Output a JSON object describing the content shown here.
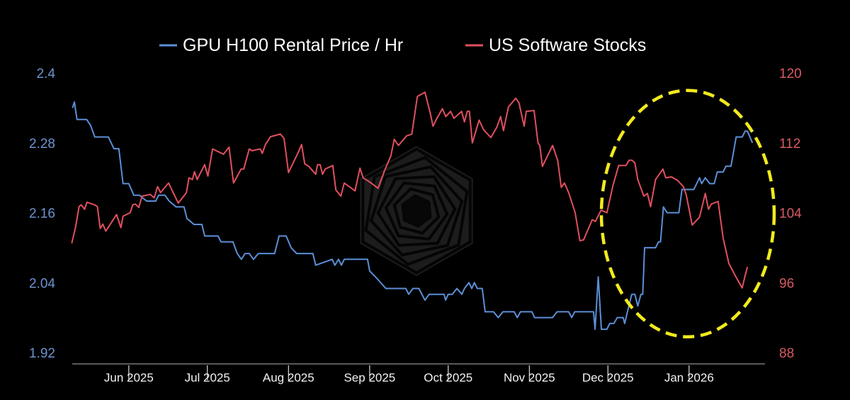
{
  "chart_data": {
    "type": "line",
    "title": "",
    "x_unit": "days since 2025-06-01",
    "legend": {
      "placement": "top-center",
      "entries": [
        "GPU H100 Rental Price / Hr",
        "US Software Stocks"
      ]
    },
    "x_ticks": [
      {
        "label": "Jun 2025",
        "x": 0
      },
      {
        "label": "Jul 2025",
        "x": 30
      },
      {
        "label": "Aug 2025",
        "x": 61
      },
      {
        "label": "Sep 2025",
        "x": 92
      },
      {
        "label": "Oct 2025",
        "x": 122
      },
      {
        "label": "Nov 2025",
        "x": 153
      },
      {
        "label": "Dec 2025",
        "x": 183
      },
      {
        "label": "Jan 2026",
        "x": 214
      }
    ],
    "xlim": [
      -21.6,
      243
    ],
    "y_left": {
      "ylim": [
        1.92,
        2.4
      ],
      "ticks": [
        "2.4",
        "2.28",
        "2.16",
        "2.04",
        "1.92"
      ],
      "tick_values": [
        2.4,
        2.28,
        2.16,
        2.04,
        1.92
      ]
    },
    "y_right": {
      "ylim": [
        88,
        120
      ],
      "ticks": [
        "120",
        "112",
        "104",
        "96",
        "88"
      ],
      "tick_values": [
        120,
        112,
        104,
        96,
        88
      ]
    },
    "grid": false,
    "series": [
      {
        "name": "GPU H100 Rental Price / Hr",
        "axis": "left",
        "color": "#5b8fd6",
        "points": [
          [
            -21.5,
            2.34
          ],
          [
            -20.8,
            2.35
          ],
          [
            -19.8,
            2.32
          ],
          [
            -16.1,
            2.32
          ],
          [
            -14.6,
            2.31
          ],
          [
            -13,
            2.29
          ],
          [
            -7.8,
            2.29
          ],
          [
            -5.7,
            2.27
          ],
          [
            -3.8,
            2.27
          ],
          [
            -2.2,
            2.21
          ],
          [
            0,
            2.21
          ],
          [
            1.9,
            2.19
          ],
          [
            4.1,
            2.19
          ],
          [
            6.8,
            2.18
          ],
          [
            10.3,
            2.18
          ],
          [
            11.4,
            2.19
          ],
          [
            13.8,
            2.19
          ],
          [
            15.4,
            2.18
          ],
          [
            18.1,
            2.17
          ],
          [
            21.1,
            2.17
          ],
          [
            22.2,
            2.15
          ],
          [
            24.9,
            2.14
          ],
          [
            27.9,
            2.14
          ],
          [
            29,
            2.12
          ],
          [
            34.1,
            2.12
          ],
          [
            35.2,
            2.11
          ],
          [
            39.8,
            2.11
          ],
          [
            41.4,
            2.09
          ],
          [
            43,
            2.08
          ],
          [
            44.4,
            2.09
          ],
          [
            46,
            2.09
          ],
          [
            47.6,
            2.08
          ],
          [
            49.5,
            2.09
          ],
          [
            55.7,
            2.09
          ],
          [
            57.4,
            2.12
          ],
          [
            60.1,
            2.12
          ],
          [
            62,
            2.1
          ],
          [
            64.1,
            2.09
          ],
          [
            70.3,
            2.09
          ],
          [
            71.4,
            2.07
          ],
          [
            77.7,
            2.08
          ],
          [
            78.7,
            2.07
          ],
          [
            80.1,
            2.08
          ],
          [
            81.2,
            2.07
          ],
          [
            82.3,
            2.08
          ],
          [
            85.2,
            2.08
          ],
          [
            91.2,
            2.08
          ],
          [
            92,
            2.06
          ],
          [
            94.2,
            2.05
          ],
          [
            98.2,
            2.03
          ],
          [
            99.6,
            2.03
          ],
          [
            105.8,
            2.03
          ],
          [
            106.9,
            2.02
          ],
          [
            108.5,
            2.03
          ],
          [
            110.8,
            2.03
          ],
          [
            113.1,
            2.01
          ],
          [
            114.7,
            2.02
          ],
          [
            120.4,
            2.02
          ],
          [
            121,
            2.01
          ],
          [
            122,
            2.02
          ],
          [
            123.6,
            2.02
          ],
          [
            125.3,
            2.03
          ],
          [
            127.2,
            2.02
          ],
          [
            128.2,
            2.03
          ],
          [
            129.9,
            2.04
          ],
          [
            131,
            2.03
          ],
          [
            132,
            2.04
          ],
          [
            133.1,
            2.03
          ],
          [
            135,
            2.03
          ],
          [
            136.1,
            1.99
          ],
          [
            139.3,
            1.99
          ],
          [
            141.1,
            1.98
          ],
          [
            142.9,
            1.99
          ],
          [
            147.2,
            1.99
          ],
          [
            148.4,
            1.98
          ],
          [
            149.6,
            1.99
          ],
          [
            154,
            1.99
          ],
          [
            155,
            1.98
          ],
          [
            161.8,
            1.98
          ],
          [
            163.6,
            1.99
          ],
          [
            168,
            1.99
          ],
          [
            169.2,
            1.98
          ],
          [
            170.3,
            1.99
          ],
          [
            177.5,
            1.99
          ],
          [
            178.1,
            1.96
          ],
          [
            179.3,
            2.05
          ],
          [
            180.5,
            1.96
          ],
          [
            182.6,
            1.96
          ],
          [
            183.7,
            1.97
          ],
          [
            185.3,
            1.97
          ],
          [
            186.6,
            1.98
          ],
          [
            188.8,
            1.98
          ],
          [
            189.4,
            1.97
          ],
          [
            191,
            2.0
          ],
          [
            192.1,
            2.02
          ],
          [
            193.3,
            2.02
          ],
          [
            194.4,
            2.0
          ],
          [
            195.6,
            2.02
          ],
          [
            196.3,
            2.02
          ],
          [
            197,
            2.1
          ],
          [
            201.2,
            2.1
          ],
          [
            202.3,
            2.11
          ],
          [
            203.1,
            2.11
          ],
          [
            204.2,
            2.17
          ],
          [
            205.6,
            2.16
          ],
          [
            210.1,
            2.16
          ],
          [
            211.3,
            2.2
          ],
          [
            215.8,
            2.2
          ],
          [
            218,
            2.22
          ],
          [
            218.8,
            2.21
          ],
          [
            220.2,
            2.22
          ],
          [
            221.9,
            2.21
          ],
          [
            223.6,
            2.21
          ],
          [
            224.8,
            2.23
          ],
          [
            227,
            2.23
          ],
          [
            228.1,
            2.24
          ],
          [
            230,
            2.24
          ],
          [
            232,
            2.29
          ],
          [
            234.3,
            2.29
          ],
          [
            235.4,
            2.3
          ],
          [
            236.3,
            2.3
          ],
          [
            238.2,
            2.28
          ]
        ]
      },
      {
        "name": "US Software Stocks",
        "axis": "right",
        "color": "#e0505e",
        "points": [
          [
            -21.8,
            100.5
          ],
          [
            -20.3,
            102.4
          ],
          [
            -19,
            104.7
          ],
          [
            -18.2,
            104.9
          ],
          [
            -16.9,
            104.4
          ],
          [
            -16,
            105.2
          ],
          [
            -13,
            104.9
          ],
          [
            -12,
            104.7
          ],
          [
            -10.9,
            102.2
          ],
          [
            -9.9,
            102.7
          ],
          [
            -8.8,
            101.9
          ],
          [
            -6.8,
            102.8
          ],
          [
            -4.7,
            103.8
          ],
          [
            -3,
            102.3
          ],
          [
            -2.2,
            103.6
          ],
          [
            0.5,
            104
          ],
          [
            1.5,
            104.9
          ],
          [
            2.5,
            105
          ],
          [
            3.8,
            104.6
          ],
          [
            5.1,
            105.9
          ],
          [
            8.2,
            106.1
          ],
          [
            9.7,
            105.7
          ],
          [
            11,
            107
          ],
          [
            12.1,
            106.3
          ],
          [
            15.2,
            107.4
          ],
          [
            18.9,
            105.1
          ],
          [
            22,
            106.3
          ],
          [
            23,
            108
          ],
          [
            24.3,
            107.8
          ],
          [
            25.1,
            108.7
          ],
          [
            26.1,
            107.8
          ],
          [
            29,
            109.5
          ],
          [
            30.2,
            108.2
          ],
          [
            32,
            111.3
          ],
          [
            36.2,
            110.7
          ],
          [
            38.3,
            111.5
          ],
          [
            40,
            107.4
          ],
          [
            42.9,
            109
          ],
          [
            43.9,
            109
          ],
          [
            46,
            111.3
          ],
          [
            47.1,
            111.1
          ],
          [
            50.2,
            111.3
          ],
          [
            51,
            110.8
          ],
          [
            52.2,
            111.8
          ],
          [
            54.1,
            112.7
          ],
          [
            57.9,
            113
          ],
          [
            59.3,
            112.5
          ],
          [
            61,
            108.6
          ],
          [
            64.7,
            110.9
          ],
          [
            66,
            111.8
          ],
          [
            67.2,
            109.6
          ],
          [
            68.8,
            109.3
          ],
          [
            71.4,
            108.4
          ],
          [
            72.1,
            109.5
          ],
          [
            73.1,
            109.5
          ],
          [
            74,
            108.4
          ],
          [
            75,
            109
          ],
          [
            77.9,
            109.4
          ],
          [
            79.1,
            106.6
          ],
          [
            81,
            105.9
          ],
          [
            82.3,
            107.4
          ],
          [
            86.4,
            106.5
          ],
          [
            88.3,
            109.1
          ],
          [
            89.5,
            108
          ],
          [
            92.1,
            107.5
          ],
          [
            95.2,
            106.8
          ],
          [
            97.8,
            108.9
          ],
          [
            100.1,
            110.5
          ],
          [
            101.4,
            112.4
          ],
          [
            103,
            111.7
          ],
          [
            106.1,
            112.8
          ],
          [
            108.1,
            113
          ],
          [
            110.2,
            117.3
          ],
          [
            113.1,
            117.8
          ],
          [
            115.3,
            115.2
          ],
          [
            116.2,
            113.9
          ],
          [
            117.5,
            114.7
          ],
          [
            119.8,
            115.9
          ],
          [
            121.1,
            115
          ],
          [
            122.9,
            115.6
          ],
          [
            124.2,
            114.8
          ],
          [
            127.1,
            115.6
          ],
          [
            128.2,
            114.4
          ],
          [
            129.3,
            115.6
          ],
          [
            130.1,
            115.6
          ],
          [
            131.2,
            112
          ],
          [
            133.8,
            114.6
          ],
          [
            135.5,
            113.5
          ],
          [
            138.3,
            112.6
          ],
          [
            140.6,
            113.8
          ],
          [
            142,
            115
          ],
          [
            143.1,
            113.4
          ],
          [
            145,
            116.1
          ],
          [
            147.8,
            117.1
          ],
          [
            149,
            116.6
          ],
          [
            151,
            113.9
          ],
          [
            151.8,
            115.6
          ],
          [
            154.8,
            115.7
          ],
          [
            156.3,
            112
          ],
          [
            157,
            111.7
          ],
          [
            158,
            109.3
          ],
          [
            159.6,
            110.3
          ],
          [
            161.9,
            111.7
          ],
          [
            163.8,
            110
          ],
          [
            165.2,
            106.9
          ],
          [
            166.4,
            107.4
          ],
          [
            168,
            106.3
          ],
          [
            170.5,
            104
          ],
          [
            172.3,
            100.8
          ],
          [
            173.7,
            100.9
          ],
          [
            177,
            103.2
          ],
          [
            178.2,
            103
          ],
          [
            180.4,
            104.3
          ],
          [
            182.6,
            104
          ],
          [
            184.9,
            107.1
          ],
          [
            187.1,
            109.4
          ],
          [
            189.9,
            109.4
          ],
          [
            191.1,
            110
          ],
          [
            192.2,
            110
          ],
          [
            193.3,
            109.7
          ],
          [
            194.4,
            107.8
          ],
          [
            196.7,
            105.9
          ],
          [
            198.1,
            106.2
          ],
          [
            199.3,
            104.7
          ],
          [
            201.2,
            107.8
          ],
          [
            204,
            109
          ],
          [
            205.1,
            108
          ],
          [
            207.3,
            108.1
          ],
          [
            209.6,
            107.7
          ],
          [
            211.8,
            107
          ],
          [
            212.9,
            106.1
          ],
          [
            215.2,
            102.6
          ],
          [
            218,
            103.5
          ],
          [
            220.2,
            106.2
          ],
          [
            221.4,
            104.4
          ],
          [
            222.5,
            105
          ],
          [
            225.1,
            105.3
          ],
          [
            227,
            101.1
          ],
          [
            229.2,
            98.2
          ],
          [
            232,
            96.6
          ],
          [
            234.3,
            95.4
          ],
          [
            235.4,
            96.8
          ],
          [
            236.3,
            97.8
          ]
        ]
      }
    ],
    "annotations": [
      {
        "type": "dashed-ellipse",
        "color": "#f2ea1e",
        "center_x": 213.5,
        "center_y_right": 103.9,
        "radius_x_days": 33,
        "radius_y_right": 14.1
      }
    ]
  }
}
